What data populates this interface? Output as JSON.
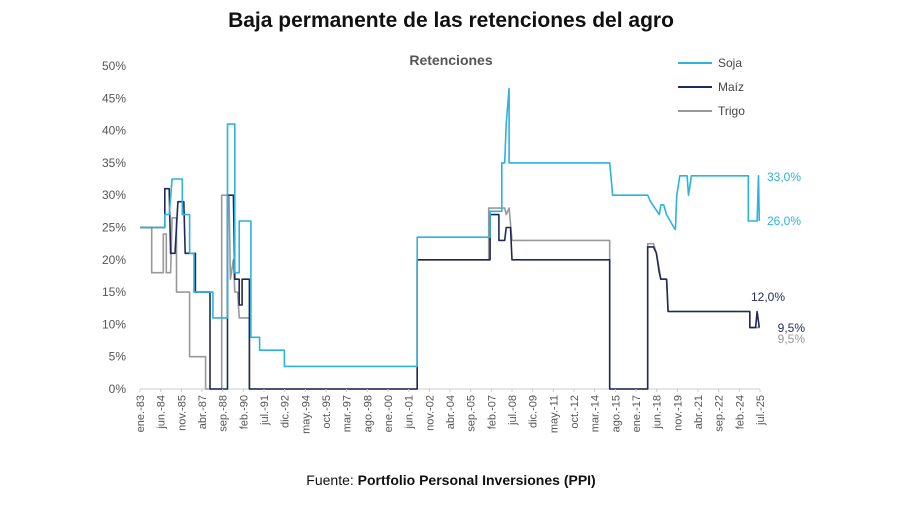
{
  "header": {
    "title": "Baja permanente de las retenciones del agro",
    "subtitle": "Retenciones"
  },
  "footer": {
    "source_prefix": "Fuente: ",
    "source_name": "Portfolio Personal Inversiones (PPI)"
  },
  "colors": {
    "soja": "#2bb3dd",
    "maiz": "#1f2a5a",
    "trigo": "#999999",
    "axis": "#cccccc",
    "text": "#555555"
  },
  "chart_data": {
    "type": "line",
    "title": "Baja permanente de las retenciones del agro",
    "subtitle": "Retenciones",
    "xlabel": "",
    "ylabel": "",
    "ylim": [
      0,
      50
    ],
    "xlim": [
      1983.0,
      2025.5
    ],
    "x_tick_labels": [
      "ene.-83",
      "jun.-84",
      "nov.-85",
      "abr.-87",
      "sep.-88",
      "feb.-90",
      "jul.-91",
      "dic.-92",
      "may.-94",
      "oct.-95",
      "mar.-97",
      "ago.-98",
      "ene.-00",
      "jun.-01",
      "nov.-02",
      "abr.-04",
      "sep.-05",
      "feb.-07",
      "jul.-08",
      "dic.-09",
      "may.-11",
      "oct.-12",
      "mar.-14",
      "ago.-15",
      "ene.-17",
      "jun.-18",
      "nov.-19",
      "abr.-21",
      "sep.-22",
      "feb.-24",
      "jul.-25"
    ],
    "y_tick_labels": [
      "0%",
      "5%",
      "10%",
      "15%",
      "20%",
      "25%",
      "30%",
      "35%",
      "40%",
      "45%",
      "50%"
    ],
    "y_ticks": [
      0,
      5,
      10,
      15,
      20,
      25,
      30,
      35,
      40,
      45,
      50
    ],
    "grid": false,
    "legend_position": "top-right",
    "series": [
      {
        "name": "Soja",
        "color": "#2bb3dd",
        "end_label": "33,0%",
        "end_label_2": "26,0%",
        "points": [
          [
            1983.0,
            25
          ],
          [
            1984.7,
            25
          ],
          [
            1984.7,
            27
          ],
          [
            1985.0,
            27
          ],
          [
            1985.2,
            32.5
          ],
          [
            1985.9,
            32.5
          ],
          [
            1985.9,
            27
          ],
          [
            1986.4,
            27
          ],
          [
            1986.4,
            21
          ],
          [
            1986.7,
            21
          ],
          [
            1986.7,
            15
          ],
          [
            1988.0,
            15
          ],
          [
            1988.0,
            11
          ],
          [
            1989.0,
            11
          ],
          [
            1989.0,
            41
          ],
          [
            1989.5,
            41
          ],
          [
            1989.5,
            18
          ],
          [
            1989.8,
            18
          ],
          [
            1989.8,
            26
          ],
          [
            1990.6,
            26
          ],
          [
            1990.6,
            8
          ],
          [
            1991.2,
            8
          ],
          [
            1991.2,
            6
          ],
          [
            1992.9,
            6
          ],
          [
            1992.9,
            3.5
          ],
          [
            2002.0,
            3.5
          ],
          [
            2002.0,
            23.5
          ],
          [
            2007.0,
            23.5
          ],
          [
            2007.0,
            27.5
          ],
          [
            2007.8,
            27.5
          ],
          [
            2007.8,
            35
          ],
          [
            2008.0,
            35
          ],
          [
            2008.1,
            41
          ],
          [
            2008.3,
            46.5
          ],
          [
            2008.3,
            35
          ],
          [
            2015.2,
            35
          ],
          [
            2015.4,
            30
          ],
          [
            2017.8,
            30
          ],
          [
            2018.0,
            29
          ],
          [
            2018.6,
            27
          ],
          [
            2018.7,
            28.5
          ],
          [
            2018.9,
            28.5
          ],
          [
            2019.1,
            27
          ],
          [
            2019.6,
            25
          ],
          [
            2019.7,
            24.7
          ],
          [
            2019.8,
            30
          ],
          [
            2020.0,
            33
          ],
          [
            2020.5,
            33
          ],
          [
            2020.6,
            30
          ],
          [
            2020.8,
            33
          ],
          [
            2024.7,
            33
          ],
          [
            2024.7,
            26
          ],
          [
            2025.3,
            26
          ],
          [
            2025.4,
            33
          ],
          [
            2025.45,
            26
          ]
        ]
      },
      {
        "name": "Maíz",
        "color": "#1f2a5a",
        "end_label": "12,0%",
        "end_label_2": "9,5%",
        "points": [
          [
            1983.0,
            25
          ],
          [
            1984.7,
            25
          ],
          [
            1984.7,
            31
          ],
          [
            1985.0,
            31
          ],
          [
            1985.1,
            21
          ],
          [
            1985.4,
            21
          ],
          [
            1985.6,
            29
          ],
          [
            1986.0,
            29
          ],
          [
            1986.1,
            21
          ],
          [
            1986.8,
            21
          ],
          [
            1986.8,
            15
          ],
          [
            1987.8,
            15
          ],
          [
            1987.8,
            0
          ],
          [
            1989.0,
            0
          ],
          [
            1989.0,
            30
          ],
          [
            1989.4,
            30
          ],
          [
            1989.5,
            17
          ],
          [
            1989.8,
            17
          ],
          [
            1989.8,
            13
          ],
          [
            1990.0,
            13
          ],
          [
            1990.0,
            17
          ],
          [
            1990.5,
            17
          ],
          [
            1990.5,
            0
          ],
          [
            2002.0,
            0
          ],
          [
            2002.0,
            20
          ],
          [
            2007.0,
            20
          ],
          [
            2007.0,
            27
          ],
          [
            2007.6,
            27
          ],
          [
            2007.6,
            23
          ],
          [
            2008.0,
            23
          ],
          [
            2008.1,
            25
          ],
          [
            2008.4,
            25
          ],
          [
            2008.5,
            20
          ],
          [
            2015.2,
            20
          ],
          [
            2015.2,
            0
          ],
          [
            2017.8,
            0
          ],
          [
            2017.8,
            22
          ],
          [
            2018.2,
            22
          ],
          [
            2018.4,
            21
          ],
          [
            2018.6,
            18
          ],
          [
            2018.7,
            17
          ],
          [
            2019.1,
            17
          ],
          [
            2019.2,
            12
          ],
          [
            2024.8,
            12
          ],
          [
            2024.8,
            9.5
          ],
          [
            2025.2,
            9.5
          ],
          [
            2025.3,
            12
          ],
          [
            2025.45,
            9.5
          ]
        ]
      },
      {
        "name": "Trigo",
        "color": "#999999",
        "end_label": "9,5%",
        "points": [
          [
            1983.0,
            25
          ],
          [
            1983.8,
            25
          ],
          [
            1983.8,
            18
          ],
          [
            1984.6,
            18
          ],
          [
            1984.6,
            24
          ],
          [
            1984.8,
            24
          ],
          [
            1984.8,
            18
          ],
          [
            1985.1,
            18
          ],
          [
            1985.2,
            26.5
          ],
          [
            1985.5,
            26.5
          ],
          [
            1985.5,
            15
          ],
          [
            1986.4,
            15
          ],
          [
            1986.4,
            5
          ],
          [
            1987.5,
            5
          ],
          [
            1987.5,
            0
          ],
          [
            1988.6,
            0
          ],
          [
            1988.6,
            30
          ],
          [
            1989.1,
            30
          ],
          [
            1989.2,
            17
          ],
          [
            1989.4,
            20
          ],
          [
            1989.5,
            15
          ],
          [
            1989.7,
            15
          ],
          [
            1989.8,
            11
          ],
          [
            1990.5,
            11
          ],
          [
            1990.5,
            0
          ],
          [
            2002.0,
            0
          ],
          [
            2002.0,
            20
          ],
          [
            2006.9,
            20
          ],
          [
            2006.9,
            28
          ],
          [
            2008.0,
            28
          ],
          [
            2008.1,
            27
          ],
          [
            2008.3,
            28
          ],
          [
            2008.5,
            23
          ],
          [
            2015.2,
            23
          ],
          [
            2015.2,
            0
          ],
          [
            2017.8,
            0
          ],
          [
            2017.8,
            22.5
          ],
          [
            2018.2,
            22.5
          ],
          [
            2018.4,
            21
          ],
          [
            2018.6,
            18.5
          ],
          [
            2018.7,
            17
          ],
          [
            2019.1,
            17
          ],
          [
            2019.2,
            12
          ],
          [
            2024.8,
            12
          ],
          [
            2024.8,
            9.5
          ],
          [
            2025.45,
            9.5
          ]
        ]
      }
    ]
  }
}
